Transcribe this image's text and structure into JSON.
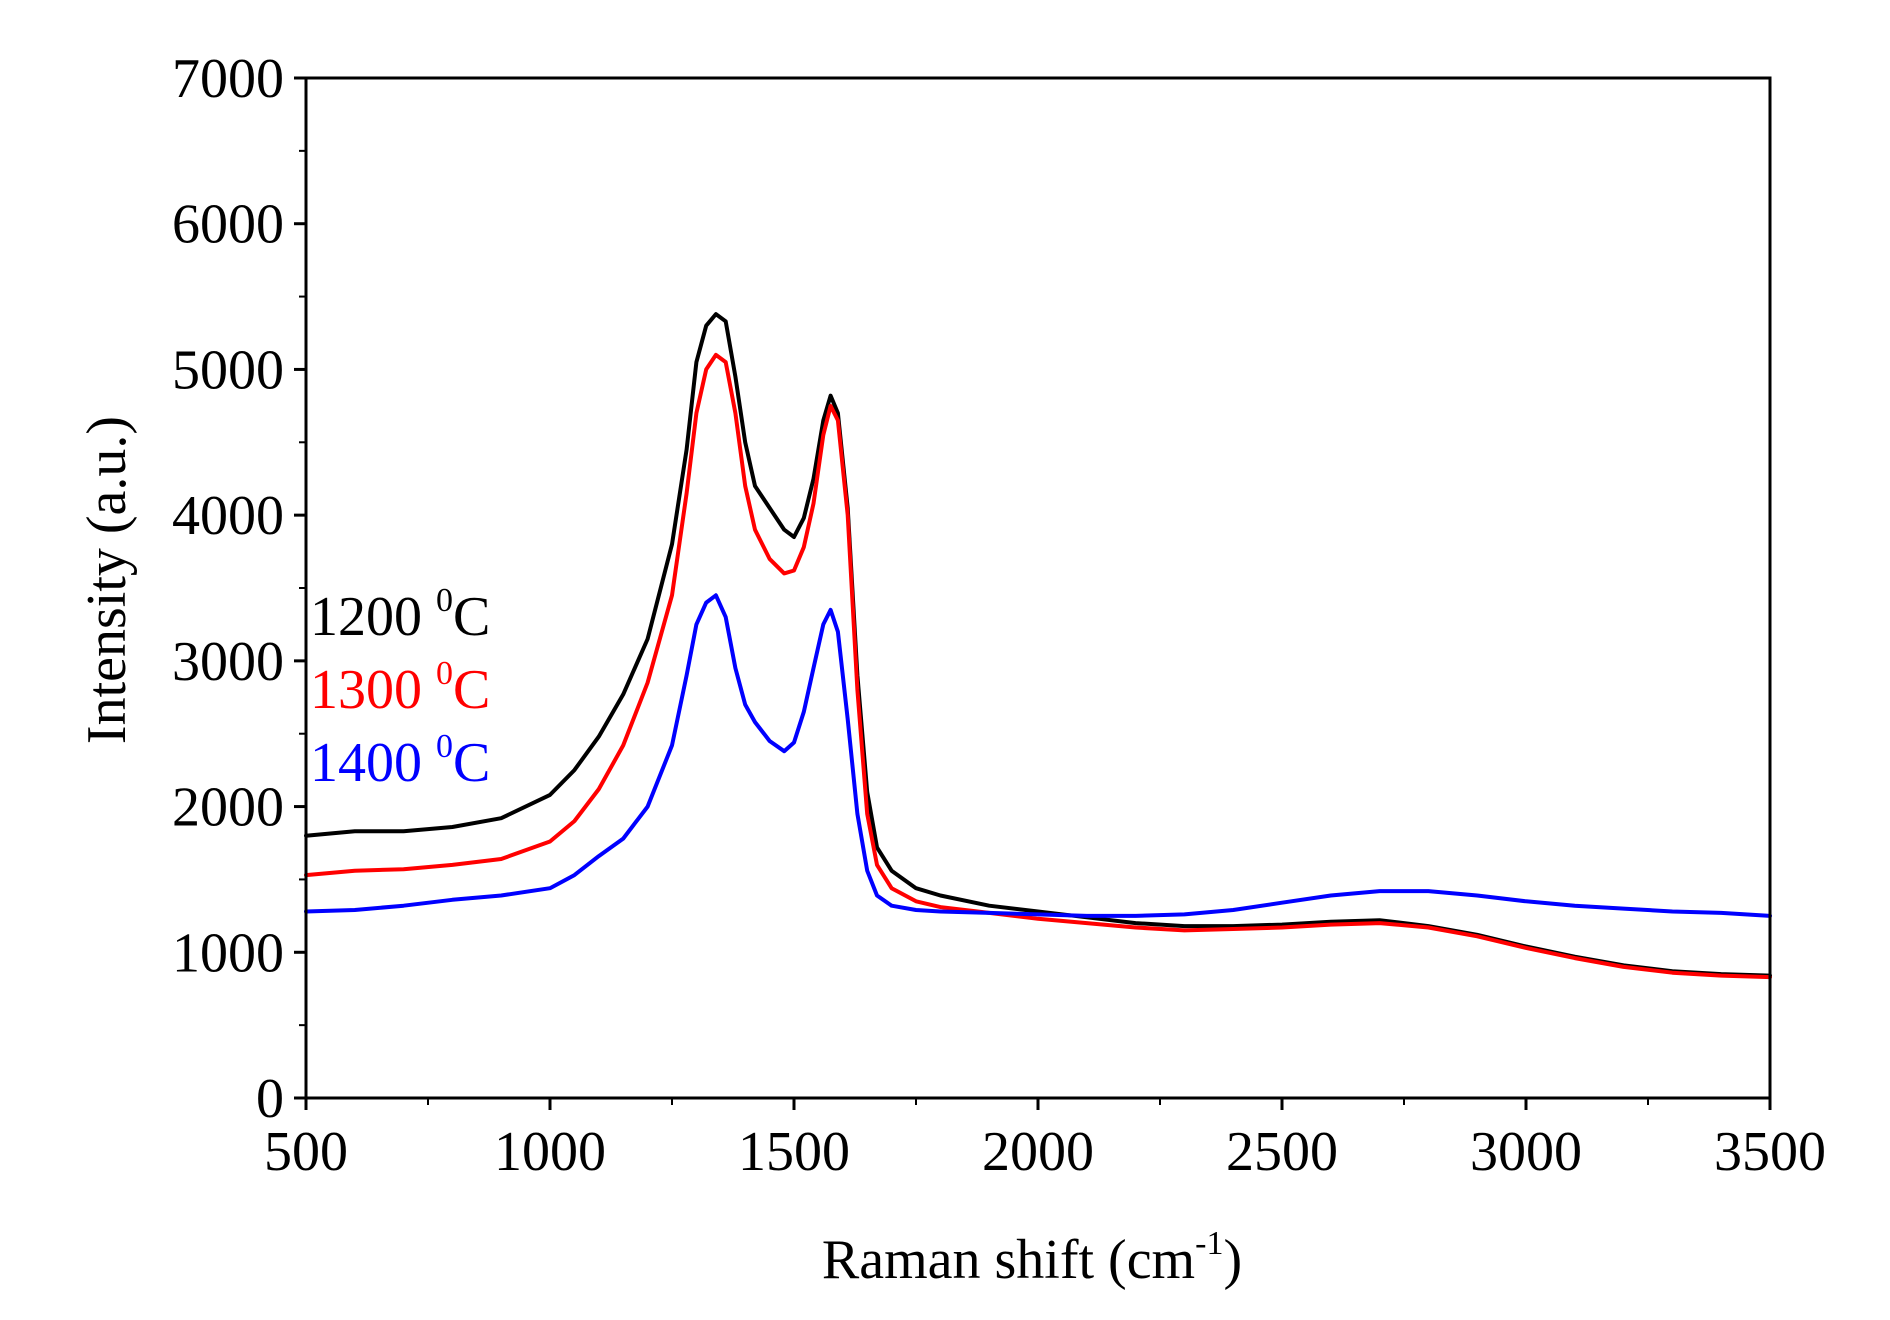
{
  "chart_data": {
    "type": "line",
    "xlabel": "Raman shift (cm",
    "xlabel_sup": "-1",
    "xlabel_end": ")",
    "ylabel": "Intensity (a.u.)",
    "xlim": [
      500,
      3500
    ],
    "ylim": [
      0,
      7000
    ],
    "xticks": [
      500,
      1000,
      1500,
      2000,
      2500,
      3000,
      3500
    ],
    "yticks": [
      0,
      1000,
      2000,
      3000,
      4000,
      5000,
      6000,
      7000
    ],
    "series": [
      {
        "name": "1200",
        "unit_sup": "0",
        "unit": "C",
        "color": "#000000",
        "x": [
          500,
          600,
          700,
          800,
          900,
          1000,
          1050,
          1100,
          1150,
          1200,
          1250,
          1280,
          1300,
          1320,
          1340,
          1360,
          1380,
          1400,
          1420,
          1450,
          1480,
          1500,
          1520,
          1540,
          1560,
          1575,
          1590,
          1610,
          1630,
          1650,
          1670,
          1700,
          1750,
          1800,
          1900,
          2000,
          2100,
          2200,
          2300,
          2400,
          2500,
          2600,
          2700,
          2800,
          2900,
          3000,
          3100,
          3200,
          3300,
          3400,
          3500
        ],
        "y": [
          1800,
          1830,
          1830,
          1860,
          1920,
          2080,
          2250,
          2480,
          2770,
          3150,
          3800,
          4450,
          5050,
          5300,
          5380,
          5330,
          4950,
          4500,
          4200,
          4050,
          3900,
          3850,
          3980,
          4250,
          4650,
          4820,
          4700,
          4050,
          2900,
          2100,
          1720,
          1560,
          1440,
          1390,
          1320,
          1280,
          1240,
          1200,
          1180,
          1180,
          1190,
          1210,
          1220,
          1180,
          1120,
          1040,
          970,
          910,
          870,
          850,
          840
        ]
      },
      {
        "name": "1300",
        "unit_sup": "0",
        "unit": "C",
        "color": "#ff0000",
        "x": [
          500,
          600,
          700,
          800,
          900,
          1000,
          1050,
          1100,
          1150,
          1200,
          1250,
          1280,
          1300,
          1320,
          1340,
          1360,
          1380,
          1400,
          1420,
          1450,
          1480,
          1500,
          1520,
          1540,
          1560,
          1575,
          1590,
          1610,
          1630,
          1650,
          1670,
          1700,
          1750,
          1800,
          1900,
          2000,
          2100,
          2200,
          2300,
          2400,
          2500,
          2600,
          2700,
          2800,
          2900,
          3000,
          3100,
          3200,
          3300,
          3400,
          3500
        ],
        "y": [
          1530,
          1560,
          1570,
          1600,
          1640,
          1760,
          1900,
          2120,
          2420,
          2850,
          3450,
          4150,
          4700,
          5000,
          5100,
          5050,
          4700,
          4200,
          3900,
          3700,
          3600,
          3620,
          3780,
          4080,
          4550,
          4750,
          4650,
          4000,
          2800,
          1950,
          1600,
          1440,
          1350,
          1310,
          1270,
          1230,
          1200,
          1170,
          1150,
          1160,
          1170,
          1190,
          1200,
          1170,
          1110,
          1030,
          960,
          900,
          860,
          840,
          830
        ]
      },
      {
        "name": "1400",
        "unit_sup": "0",
        "unit": "C",
        "color": "#0000ff",
        "x": [
          500,
          600,
          700,
          800,
          900,
          1000,
          1050,
          1100,
          1150,
          1200,
          1250,
          1280,
          1300,
          1320,
          1340,
          1360,
          1380,
          1400,
          1420,
          1450,
          1480,
          1500,
          1520,
          1540,
          1560,
          1575,
          1590,
          1610,
          1630,
          1650,
          1670,
          1700,
          1750,
          1800,
          1900,
          2000,
          2100,
          2200,
          2300,
          2400,
          2500,
          2600,
          2700,
          2800,
          2900,
          3000,
          3100,
          3200,
          3300,
          3400,
          3500
        ],
        "y": [
          1280,
          1290,
          1320,
          1360,
          1390,
          1440,
          1530,
          1660,
          1780,
          2000,
          2420,
          2900,
          3250,
          3400,
          3450,
          3300,
          2950,
          2700,
          2580,
          2450,
          2380,
          2440,
          2650,
          2950,
          3250,
          3350,
          3200,
          2600,
          1950,
          1560,
          1390,
          1320,
          1290,
          1280,
          1270,
          1260,
          1250,
          1250,
          1260,
          1290,
          1340,
          1390,
          1420,
          1420,
          1390,
          1350,
          1320,
          1300,
          1280,
          1270,
          1250
        ]
      }
    ]
  }
}
